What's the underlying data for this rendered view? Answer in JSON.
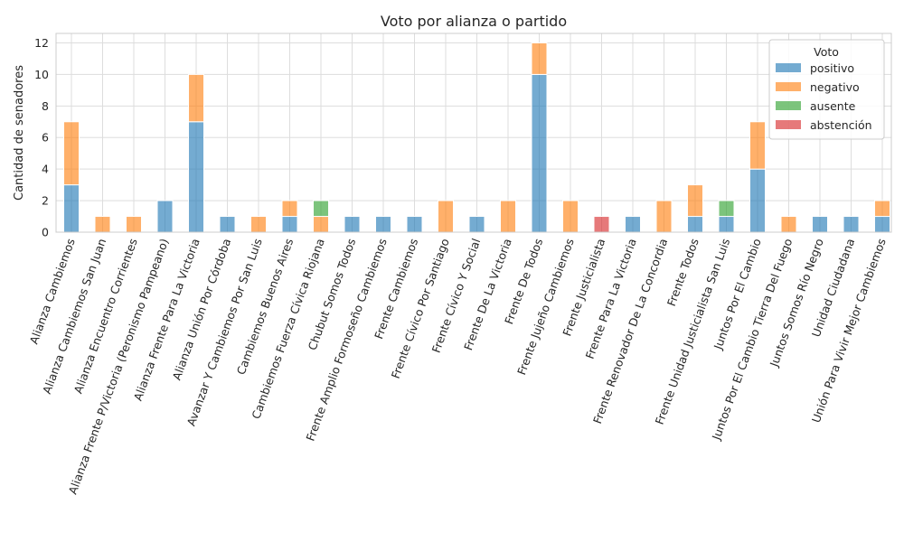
{
  "chart_data": {
    "type": "bar",
    "stacked": true,
    "title": "Voto por alianza o partido",
    "xlabel": "",
    "ylabel": "Cantidad de senadores",
    "ylim": [
      0,
      12.6
    ],
    "yticks": [
      "0",
      "2",
      "4",
      "6",
      "8",
      "10",
      "12"
    ],
    "grid": true,
    "legend_title": "Voto",
    "legend_position": "top-right",
    "categories": [
      "Alianza Cambiemos",
      "Alianza Cambiemos San Juan",
      "Alianza Encuentro Corrientes",
      "Alianza Frente P/Victoria (Peronismo Pampeano)",
      "Alianza Frente Para La Victoria",
      "Alianza Unión Por Córdoba",
      "Avanzar Y Cambiemos Por San Luis",
      "Cambiemos Buenos Aires",
      "Cambiemos Fuerza Cívica Riojana",
      "Chubut Somos Todos",
      "Frente Amplio Formoseño Cambiemos",
      "Frente Cambiemos",
      "Frente Cívico Por Santiago",
      "Frente Cívico Y Social",
      "Frente De La Victoria",
      "Frente De Todos",
      "Frente Jujeño Cambiemos",
      "Frente Justicialista",
      "Frente Para La Victoria",
      "Frente Renovador De La Concordia",
      "Frente Todos",
      "Frente Unidad Justicialista San Luis",
      "Juntos Por El Cambio",
      "Juntos Por El Cambio Tierra Del Fuego",
      "Juntos Somos Río Negro",
      "Unidad Ciudadana",
      "Unión Para Vivir Mejor Cambiemos"
    ],
    "series": [
      {
        "name": "positivo",
        "color": "#1f77b4",
        "values": [
          3,
          0,
          0,
          2,
          7,
          1,
          0,
          1,
          0,
          1,
          1,
          1,
          0,
          1,
          0,
          10,
          0,
          0,
          1,
          0,
          1,
          1,
          4,
          0,
          1,
          1,
          1
        ]
      },
      {
        "name": "negativo",
        "color": "#ff7f0e",
        "values": [
          4,
          1,
          1,
          0,
          3,
          0,
          1,
          1,
          1,
          0,
          0,
          0,
          2,
          0,
          2,
          2,
          2,
          0,
          0,
          2,
          2,
          0,
          3,
          1,
          0,
          0,
          1
        ]
      },
      {
        "name": "ausente",
        "color": "#2ca02c",
        "values": [
          0,
          0,
          0,
          0,
          0,
          0,
          0,
          0,
          1,
          0,
          0,
          0,
          0,
          0,
          0,
          0,
          0,
          0,
          0,
          0,
          0,
          1,
          0,
          0,
          0,
          0,
          0
        ]
      },
      {
        "name": "abstención",
        "color": "#d62728",
        "values": [
          0,
          0,
          0,
          0,
          0,
          0,
          0,
          0,
          0,
          0,
          0,
          0,
          0,
          0,
          0,
          0,
          0,
          1,
          0,
          0,
          0,
          0,
          0,
          0,
          0,
          0,
          0
        ]
      }
    ]
  }
}
